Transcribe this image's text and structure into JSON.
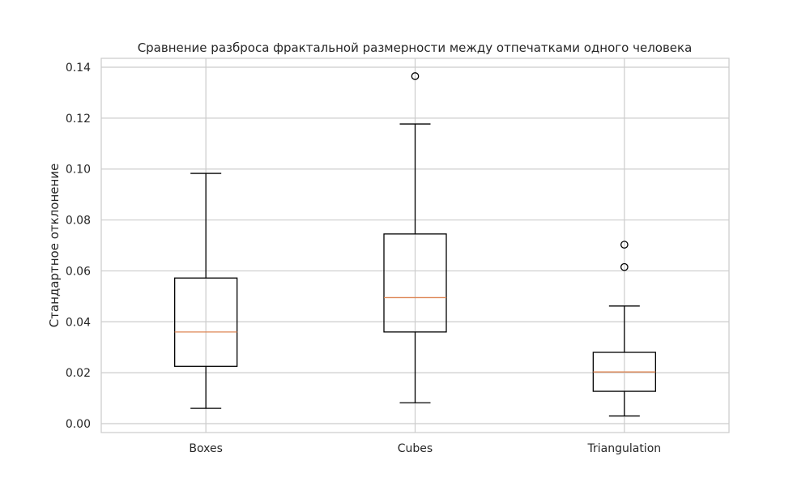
{
  "chart_data": {
    "type": "boxplot",
    "title": "Сравнение разброса фрактальной размерности между отпечатками одного человека",
    "xlabel": "",
    "ylabel": "Стандартное отклонение",
    "categories": [
      "Boxes",
      "Cubes",
      "Triangulation"
    ],
    "ylim": [
      -0.0035,
      0.1435
    ],
    "yticks": [
      0.0,
      0.02,
      0.04,
      0.06,
      0.08,
      0.1,
      0.12,
      0.14
    ],
    "ytick_labels": [
      "0.00",
      "0.02",
      "0.04",
      "0.06",
      "0.08",
      "0.10",
      "0.12",
      "0.14"
    ],
    "grid": true,
    "boxes": [
      {
        "whisker_low": 0.006,
        "q1": 0.0225,
        "median": 0.036,
        "q3": 0.0572,
        "whisker_high": 0.0983,
        "outliers": []
      },
      {
        "whisker_low": 0.0082,
        "q1": 0.036,
        "median": 0.0495,
        "q3": 0.0745,
        "whisker_high": 0.1177,
        "outliers": [
          0.1365
        ]
      },
      {
        "whisker_low": 0.003,
        "q1": 0.0127,
        "median": 0.0203,
        "q3": 0.028,
        "whisker_high": 0.0462,
        "outliers": [
          0.0615,
          0.0703
        ]
      }
    ],
    "colors": {
      "box": "#000000",
      "median": "#dd8452",
      "grid": "#cccccc",
      "frame": "#cccccc"
    }
  }
}
